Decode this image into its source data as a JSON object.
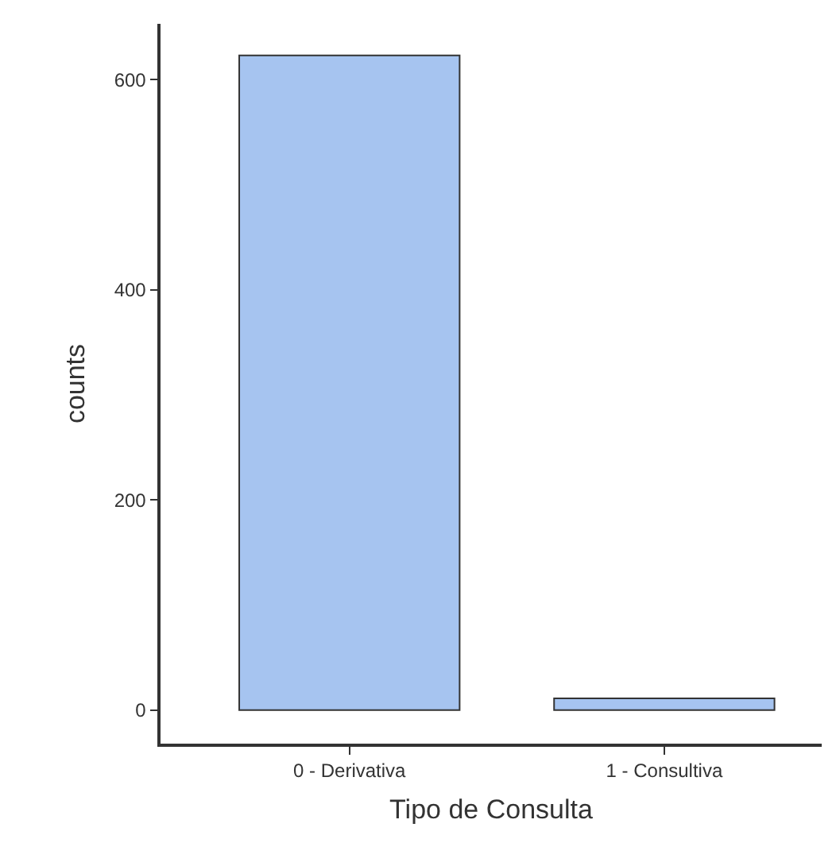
{
  "chart_data": {
    "type": "bar",
    "xlabel": "Tipo de Consulta",
    "ylabel": "counts",
    "categories": [
      "0 - Derivativa",
      "1 - Consultiva"
    ],
    "values": [
      623,
      11
    ],
    "color": "#a6c4f0",
    "ylim": [
      -32,
      653
    ],
    "yticks": [
      0,
      200,
      400,
      600
    ],
    "grid": false
  }
}
